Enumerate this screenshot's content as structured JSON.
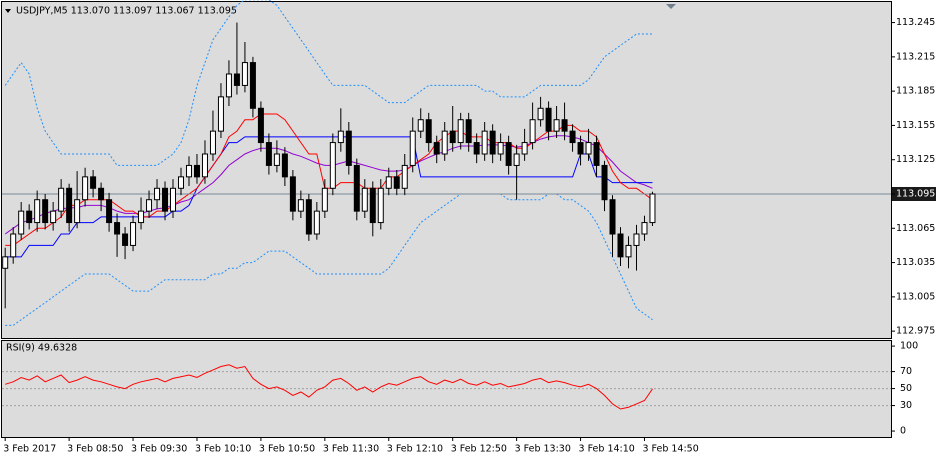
{
  "chart_data": [
    {
      "type": "candlestick",
      "title": "USDJPY,M5  113.070 113.097 113.067 113.095",
      "open": [
        113.03,
        113.04,
        113.06,
        113.08,
        113.07,
        113.09,
        113.07,
        113.08,
        113.1,
        113.07,
        113.09,
        113.11,
        113.1,
        113.09,
        113.07,
        113.06,
        113.05,
        113.07,
        113.08,
        113.09,
        113.1,
        113.08,
        113.1,
        113.11,
        113.12,
        113.11,
        113.13,
        113.15,
        113.18,
        113.2,
        113.19,
        113.21,
        113.17,
        113.14,
        113.12,
        113.13,
        113.11,
        113.08,
        113.09,
        113.06,
        113.08,
        113.1,
        113.14,
        113.15,
        113.12,
        113.08,
        113.1,
        113.07,
        113.1,
        113.11,
        113.1,
        113.12,
        113.15,
        113.16,
        113.14,
        113.13,
        113.15,
        113.14,
        113.16,
        113.14,
        113.13,
        113.15,
        113.13,
        113.14,
        113.12,
        113.13,
        113.14,
        113.16,
        113.17,
        113.15,
        113.16,
        113.15,
        113.14,
        113.13,
        113.14,
        113.12,
        113.09,
        113.06,
        113.04,
        113.05,
        113.06,
        113.07
      ],
      "high": [
        113.048,
        113.066,
        113.088,
        113.086,
        113.098,
        113.095,
        113.088,
        113.108,
        113.104,
        113.115,
        113.118,
        113.116,
        113.105,
        113.096,
        113.078,
        113.066,
        113.076,
        113.092,
        113.098,
        113.108,
        113.106,
        113.108,
        113.118,
        113.128,
        113.13,
        113.142,
        113.168,
        113.192,
        113.212,
        113.245,
        113.228,
        113.215,
        113.176,
        113.148,
        113.142,
        113.136,
        113.116,
        113.098,
        113.095,
        113.088,
        113.108,
        113.148,
        113.17,
        113.158,
        113.126,
        113.108,
        113.106,
        113.108,
        113.118,
        113.116,
        113.13,
        113.162,
        113.17,
        113.166,
        113.146,
        113.158,
        113.172,
        113.166,
        113.166,
        113.148,
        113.158,
        113.156,
        113.148,
        113.146,
        113.138,
        113.152,
        113.175,
        113.18,
        113.176,
        113.172,
        113.175,
        113.156,
        113.146,
        113.152,
        113.146,
        113.124,
        113.094,
        113.066,
        113.058,
        113.068,
        113.076,
        113.097
      ],
      "low": [
        112.995,
        113.034,
        113.055,
        113.064,
        113.062,
        113.064,
        113.063,
        113.074,
        113.062,
        113.065,
        113.084,
        113.092,
        113.08,
        113.062,
        113.04,
        113.038,
        113.045,
        113.064,
        113.074,
        113.082,
        113.072,
        113.074,
        113.094,
        113.102,
        113.104,
        113.104,
        113.124,
        113.144,
        113.172,
        113.182,
        113.184,
        113.162,
        113.132,
        113.112,
        113.114,
        113.102,
        113.072,
        113.074,
        113.054,
        113.055,
        113.074,
        113.094,
        113.132,
        113.112,
        113.072,
        113.074,
        113.058,
        113.064,
        113.094,
        113.094,
        113.094,
        113.114,
        113.144,
        113.132,
        113.122,
        113.124,
        113.132,
        113.134,
        113.132,
        113.122,
        113.124,
        113.122,
        113.124,
        113.112,
        113.09,
        113.124,
        113.134,
        113.154,
        113.142,
        113.144,
        113.142,
        113.132,
        113.12,
        113.124,
        113.11,
        113.08,
        113.04,
        113.032,
        113.03,
        113.028,
        113.054,
        113.067
      ],
      "close": [
        113.04,
        113.06,
        113.08,
        113.07,
        113.09,
        113.07,
        113.08,
        113.1,
        113.07,
        113.09,
        113.11,
        113.1,
        113.09,
        113.07,
        113.06,
        113.05,
        113.07,
        113.08,
        113.09,
        113.1,
        113.08,
        113.1,
        113.11,
        113.12,
        113.11,
        113.13,
        113.15,
        113.18,
        113.2,
        113.19,
        113.21,
        113.17,
        113.14,
        113.12,
        113.13,
        113.11,
        113.08,
        113.09,
        113.06,
        113.08,
        113.1,
        113.14,
        113.15,
        113.12,
        113.08,
        113.1,
        113.07,
        113.1,
        113.11,
        113.1,
        113.12,
        113.15,
        113.16,
        113.14,
        113.13,
        113.15,
        113.14,
        113.16,
        113.14,
        113.13,
        113.15,
        113.13,
        113.14,
        113.12,
        113.13,
        113.14,
        113.16,
        113.17,
        113.15,
        113.16,
        113.15,
        113.14,
        113.13,
        113.14,
        113.12,
        113.09,
        113.06,
        113.04,
        113.05,
        113.06,
        113.07,
        113.095
      ],
      "up_color": "#ffffff",
      "down_color": "#000000",
      "wick_color": "#000000",
      "lines": [
        {
          "color": "#1e90ff",
          "dashed": true,
          "values": [
            113.19,
            113.2,
            113.21,
            113.2,
            113.17,
            113.15,
            113.14,
            113.13,
            113.13,
            113.13,
            113.13,
            113.13,
            113.13,
            113.13,
            113.12,
            113.12,
            113.12,
            113.12,
            113.12,
            113.12,
            113.125,
            113.13,
            113.14,
            113.16,
            113.19,
            113.21,
            113.23,
            113.24,
            113.25,
            113.26,
            113.265,
            113.265,
            113.265,
            113.265,
            113.26,
            113.25,
            113.24,
            113.23,
            113.22,
            113.21,
            113.2,
            113.19,
            113.19,
            113.19,
            113.19,
            113.19,
            113.185,
            113.18,
            113.175,
            113.175,
            113.175,
            113.18,
            113.185,
            113.19,
            113.19,
            113.19,
            113.19,
            113.19,
            113.19,
            113.19,
            113.185,
            113.185,
            113.18,
            113.18,
            113.18,
            113.18,
            113.185,
            113.19,
            113.19,
            113.19,
            113.19,
            113.19,
            113.19,
            113.195,
            113.205,
            113.215,
            113.22,
            113.225,
            113.23,
            113.235,
            113.235,
            113.235
          ]
        },
        {
          "color": "#1e90ff",
          "dashed": true,
          "values": [
            112.98,
            112.98,
            112.985,
            112.99,
            112.995,
            113.0,
            113.005,
            113.01,
            113.015,
            113.02,
            113.025,
            113.025,
            113.025,
            113.025,
            113.02,
            113.015,
            113.01,
            113.01,
            113.01,
            113.015,
            113.02,
            113.02,
            113.02,
            113.02,
            113.02,
            113.02,
            113.025,
            113.025,
            113.03,
            113.03,
            113.035,
            113.035,
            113.04,
            113.045,
            113.045,
            113.045,
            113.04,
            113.035,
            113.03,
            113.025,
            113.025,
            113.025,
            113.025,
            113.025,
            113.025,
            113.025,
            113.025,
            113.025,
            113.03,
            113.04,
            113.05,
            113.06,
            113.07,
            113.075,
            113.08,
            113.085,
            113.09,
            113.095,
            113.095,
            113.095,
            113.095,
            113.095,
            113.095,
            113.09,
            113.09,
            113.09,
            113.09,
            113.09,
            113.095,
            113.095,
            113.09,
            113.09,
            113.085,
            113.08,
            113.07,
            113.055,
            113.04,
            113.025,
            113.01,
            112.995,
            112.99,
            112.985
          ]
        },
        {
          "color": "#9400d3",
          "dashed": false,
          "values": [
            113.06,
            113.065,
            113.07,
            113.072,
            113.075,
            113.078,
            113.08,
            113.082,
            113.083,
            113.083,
            113.085,
            113.085,
            113.085,
            113.083,
            113.08,
            113.078,
            113.078,
            113.078,
            113.08,
            113.082,
            113.083,
            113.085,
            113.088,
            113.09,
            113.095,
            113.1,
            113.105,
            113.112,
            113.12,
            113.125,
            113.13,
            113.133,
            113.135,
            113.135,
            113.135,
            113.133,
            113.13,
            113.128,
            113.125,
            113.122,
            113.12,
            113.12,
            113.122,
            113.124,
            113.122,
            113.12,
            113.118,
            113.116,
            113.115,
            113.115,
            113.116,
            113.12,
            113.124,
            113.127,
            113.13,
            113.132,
            113.135,
            113.137,
            113.137,
            113.137,
            113.138,
            113.138,
            113.138,
            113.137,
            113.136,
            113.137,
            113.14,
            113.143,
            113.145,
            113.146,
            113.146,
            113.145,
            113.143,
            113.14,
            113.137,
            113.13,
            113.123,
            113.115,
            113.11,
            113.105,
            113.103,
            113.1
          ]
        },
        {
          "color": "#0000ff",
          "dashed": false,
          "values": [
            113.04,
            113.04,
            113.04,
            113.05,
            113.05,
            113.05,
            113.05,
            113.06,
            113.06,
            113.07,
            113.07,
            113.07,
            113.075,
            113.075,
            113.075,
            113.075,
            113.075,
            113.075,
            113.075,
            113.075,
            113.075,
            113.08,
            113.08,
            113.085,
            113.1,
            113.11,
            113.12,
            113.13,
            113.14,
            113.14,
            113.145,
            113.145,
            113.145,
            113.145,
            113.145,
            113.145,
            113.145,
            113.145,
            113.145,
            113.145,
            113.145,
            113.145,
            113.145,
            113.145,
            113.145,
            113.145,
            113.145,
            113.145,
            113.145,
            113.145,
            113.145,
            113.145,
            113.11,
            113.11,
            113.11,
            113.11,
            113.11,
            113.11,
            113.11,
            113.11,
            113.11,
            113.11,
            113.11,
            113.11,
            113.11,
            113.11,
            113.11,
            113.11,
            113.11,
            113.11,
            113.11,
            113.11,
            113.13,
            113.13,
            113.11,
            113.11,
            113.105,
            113.105,
            113.105,
            113.105,
            113.105,
            113.105
          ]
        },
        {
          "color": "#ff0000",
          "dashed": false,
          "values": [
            113.05,
            113.05,
            113.055,
            113.06,
            113.065,
            113.065,
            113.07,
            113.075,
            113.085,
            113.085,
            113.09,
            113.09,
            113.09,
            113.09,
            113.085,
            113.08,
            113.08,
            113.075,
            113.075,
            113.08,
            113.08,
            113.085,
            113.09,
            113.095,
            113.1,
            113.11,
            113.12,
            113.13,
            113.145,
            113.15,
            113.16,
            113.16,
            113.165,
            113.165,
            113.165,
            113.16,
            113.15,
            113.14,
            113.13,
            113.13,
            113.1,
            113.1,
            113.105,
            113.105,
            113.105,
            113.1,
            113.1,
            113.1,
            113.11,
            113.11,
            113.115,
            113.12,
            113.125,
            113.13,
            113.14,
            113.145,
            113.15,
            113.15,
            113.145,
            113.145,
            113.145,
            113.14,
            113.14,
            113.14,
            113.135,
            113.135,
            113.14,
            113.145,
            113.15,
            113.15,
            113.155,
            113.155,
            113.15,
            113.15,
            113.145,
            113.13,
            113.115,
            113.105,
            113.1,
            113.1,
            113.095,
            113.09
          ]
        }
      ],
      "current_price_color": "#778899",
      "xlim": [
        -0.4,
        110.85
      ],
      "ylim": [
        112.969,
        113.263
      ],
      "yticks": [
        112.975,
        113.005,
        113.035,
        113.065,
        113.095,
        113.125,
        113.155,
        113.185,
        113.215,
        113.245
      ]
    },
    {
      "type": "line",
      "title": "RSI(9) 49.6328",
      "color": "#ff0000",
      "values": [
        55,
        58,
        63,
        60,
        65,
        58,
        62,
        66,
        57,
        60,
        64,
        60,
        58,
        55,
        52,
        50,
        55,
        58,
        60,
        62,
        58,
        62,
        64,
        66,
        63,
        68,
        72,
        76,
        78,
        74,
        76,
        62,
        55,
        50,
        52,
        48,
        42,
        46,
        40,
        48,
        52,
        60,
        62,
        56,
        48,
        52,
        46,
        52,
        56,
        54,
        58,
        62,
        64,
        58,
        55,
        60,
        57,
        61,
        56,
        54,
        58,
        54,
        56,
        52,
        54,
        56,
        60,
        62,
        57,
        59,
        57,
        54,
        52,
        55,
        50,
        42,
        32,
        26,
        28,
        32,
        36,
        49.6328
      ],
      "levels": [
        70,
        50,
        30
      ],
      "xlim": [
        -0.4,
        110.85
      ],
      "ylim": [
        -7,
        106
      ],
      "yticks": [
        0,
        30,
        50,
        70,
        100
      ],
      "xticks": [
        {
          "value": 0,
          "label": "3 Feb 2017"
        },
        {
          "value": 8,
          "label": "3 Feb 08:50"
        },
        {
          "value": 16,
          "label": "3 Feb 09:30"
        },
        {
          "value": 24,
          "label": "3 Feb 10:10"
        },
        {
          "value": 32,
          "label": "3 Feb 10:50"
        },
        {
          "value": 40,
          "label": "3 Feb 11:30"
        },
        {
          "value": 48,
          "label": "3 Feb 12:10"
        },
        {
          "value": 56,
          "label": "3 Feb 12:50"
        },
        {
          "value": 64,
          "label": "3 Feb 13:30"
        },
        {
          "value": 72,
          "label": "3 Feb 14:10"
        },
        {
          "value": 80,
          "label": "3 Feb 14:50"
        }
      ]
    }
  ]
}
